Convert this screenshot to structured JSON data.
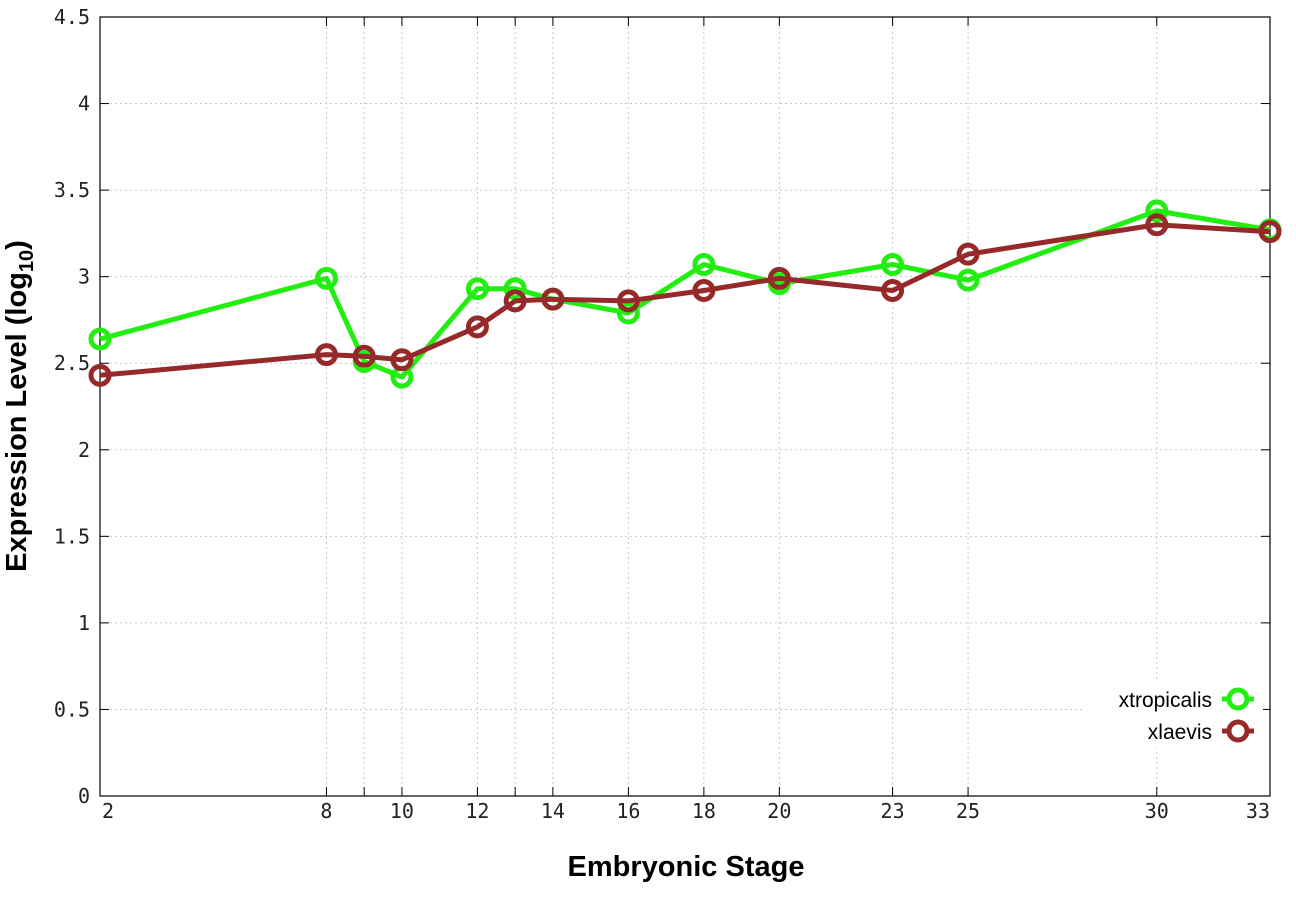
{
  "chart_data": {
    "type": "line",
    "xlabel": "Embryonic Stage",
    "ylabel_main": "Expression Level (log",
    "ylabel_sub": "10",
    "ylabel_close": ")",
    "xlim": [
      2,
      33
    ],
    "ylim": [
      0,
      4.5
    ],
    "x_ticks": [
      2,
      8,
      9,
      10,
      12,
      13,
      14,
      16,
      18,
      20,
      23,
      25,
      30,
      33
    ],
    "x_tick_labels": [
      "2",
      "8",
      "",
      "10",
      "12",
      "",
      "14",
      "16",
      "18",
      "20",
      "23",
      "25",
      "30",
      "33"
    ],
    "y_ticks": [
      0,
      0.5,
      1,
      1.5,
      2,
      2.5,
      3,
      3.5,
      4,
      4.5
    ],
    "y_tick_labels": [
      "0",
      "0.5",
      "1",
      "1.5",
      "2",
      "2.5",
      "3",
      "3.5",
      "4",
      "4.5"
    ],
    "grid": true,
    "legend_position": "bottom-right",
    "series": [
      {
        "name": "xtropicalis",
        "color": "#22ee11",
        "x": [
          2,
          8,
          9,
          10,
          12,
          13,
          14,
          16,
          18,
          20,
          23,
          25,
          30,
          33
        ],
        "y": [
          2.64,
          2.99,
          2.51,
          2.42,
          2.93,
          2.93,
          2.87,
          2.79,
          3.07,
          2.96,
          3.07,
          2.98,
          3.38,
          3.27
        ]
      },
      {
        "name": "xlaevis",
        "color": "#962a2a",
        "x": [
          2,
          8,
          9,
          10,
          12,
          13,
          14,
          16,
          18,
          20,
          23,
          25,
          30,
          33
        ],
        "y": [
          2.43,
          2.55,
          2.54,
          2.52,
          2.71,
          2.86,
          2.87,
          2.86,
          2.92,
          2.99,
          2.92,
          3.13,
          3.3,
          3.26
        ]
      }
    ]
  }
}
